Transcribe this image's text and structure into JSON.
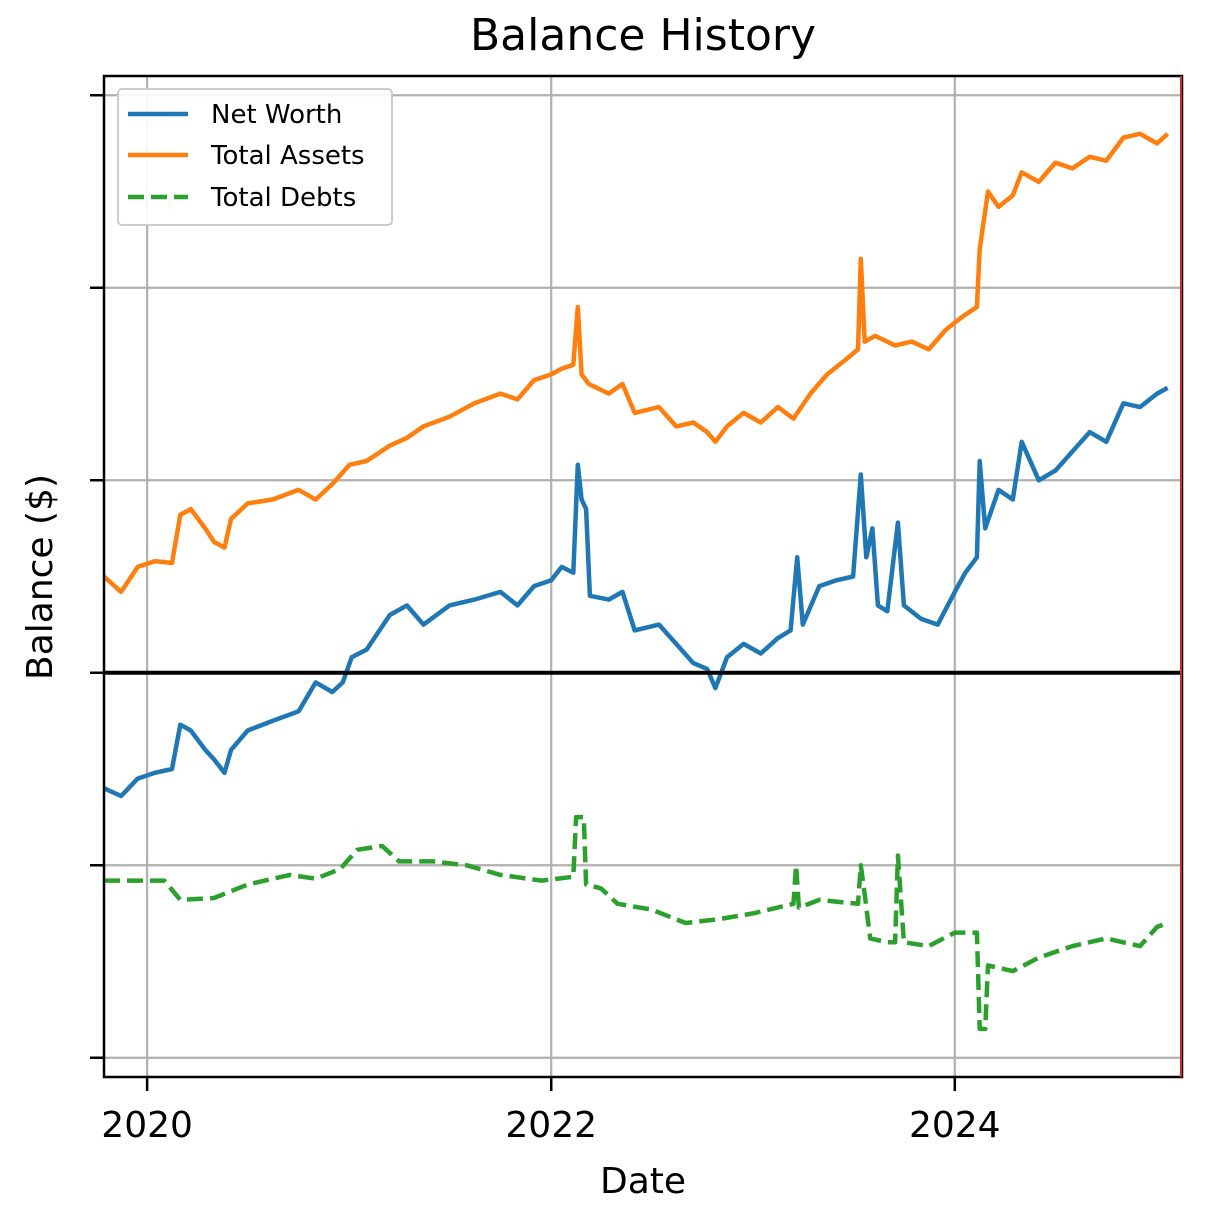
{
  "chart_data": {
    "type": "line",
    "title": "Balance History",
    "xlabel": "Date",
    "ylabel": "Balance ($)",
    "y_unit": "relative (y tick labels not shown)",
    "xlim": [
      "2019-10-15",
      "2025-02-15"
    ],
    "ylim": [
      -2.1,
      3.1
    ],
    "ytick_labels_visible": false,
    "yticks": [
      -2,
      -1,
      0,
      1,
      2,
      3
    ],
    "xticks": [
      {
        "date": "2020-01-01",
        "label": "2020"
      },
      {
        "date": "2022-01-01",
        "label": "2022"
      },
      {
        "date": "2024-01-01",
        "label": "2024"
      }
    ],
    "zero_line": true,
    "grid": true,
    "legend": "top-left",
    "series": [
      {
        "name": "Net Worth",
        "color": "#1f77b4",
        "style": "solid",
        "points": [
          [
            "2019-10-15",
            -0.6
          ],
          [
            "2019-11-15",
            -0.64
          ],
          [
            "2019-12-15",
            -0.55
          ],
          [
            "2020-01-15",
            -0.52
          ],
          [
            "2020-02-15",
            -0.5
          ],
          [
            "2020-03-01",
            -0.27
          ],
          [
            "2020-03-20",
            -0.3
          ],
          [
            "2020-04-15",
            -0.4
          ],
          [
            "2020-05-01",
            -0.45
          ],
          [
            "2020-05-20",
            -0.52
          ],
          [
            "2020-06-01",
            -0.4
          ],
          [
            "2020-07-01",
            -0.3
          ],
          [
            "2020-08-15",
            -0.25
          ],
          [
            "2020-10-01",
            -0.2
          ],
          [
            "2020-11-01",
            -0.05
          ],
          [
            "2020-12-01",
            -0.1
          ],
          [
            "2020-12-20",
            -0.05
          ],
          [
            "2021-01-05",
            0.08
          ],
          [
            "2021-02-01",
            0.12
          ],
          [
            "2021-03-15",
            0.3
          ],
          [
            "2021-04-15",
            0.35
          ],
          [
            "2021-05-15",
            0.25
          ],
          [
            "2021-07-01",
            0.35
          ],
          [
            "2021-08-15",
            0.38
          ],
          [
            "2021-10-01",
            0.42
          ],
          [
            "2021-11-01",
            0.35
          ],
          [
            "2021-12-01",
            0.45
          ],
          [
            "2022-01-01",
            0.48
          ],
          [
            "2022-01-20",
            0.55
          ],
          [
            "2022-02-10",
            0.52
          ],
          [
            "2022-02-18",
            1.08
          ],
          [
            "2022-02-25",
            0.9
          ],
          [
            "2022-03-05",
            0.85
          ],
          [
            "2022-03-12",
            0.4
          ],
          [
            "2022-04-15",
            0.38
          ],
          [
            "2022-05-10",
            0.42
          ],
          [
            "2022-06-01",
            0.22
          ],
          [
            "2022-07-15",
            0.25
          ],
          [
            "2022-08-15",
            0.15
          ],
          [
            "2022-09-15",
            0.05
          ],
          [
            "2022-10-10",
            0.02
          ],
          [
            "2022-10-25",
            -0.08
          ],
          [
            "2022-11-15",
            0.08
          ],
          [
            "2022-12-15",
            0.15
          ],
          [
            "2023-01-15",
            0.1
          ],
          [
            "2023-02-15",
            0.18
          ],
          [
            "2023-03-10",
            0.22
          ],
          [
            "2023-03-22",
            0.6
          ],
          [
            "2023-04-01",
            0.25
          ],
          [
            "2023-05-01",
            0.45
          ],
          [
            "2023-06-01",
            0.48
          ],
          [
            "2023-07-01",
            0.5
          ],
          [
            "2023-07-15",
            1.03
          ],
          [
            "2023-07-25",
            0.6
          ],
          [
            "2023-08-05",
            0.75
          ],
          [
            "2023-08-15",
            0.35
          ],
          [
            "2023-09-01",
            0.32
          ],
          [
            "2023-09-20",
            0.78
          ],
          [
            "2023-10-01",
            0.35
          ],
          [
            "2023-11-01",
            0.28
          ],
          [
            "2023-12-01",
            0.25
          ],
          [
            "2024-01-01",
            0.42
          ],
          [
            "2024-01-20",
            0.52
          ],
          [
            "2024-02-10",
            0.6
          ],
          [
            "2024-02-15",
            1.1
          ],
          [
            "2024-02-25",
            0.75
          ],
          [
            "2024-03-20",
            0.95
          ],
          [
            "2024-04-15",
            0.9
          ],
          [
            "2024-05-01",
            1.2
          ],
          [
            "2024-06-01",
            1.0
          ],
          [
            "2024-07-01",
            1.05
          ],
          [
            "2024-08-01",
            1.15
          ],
          [
            "2024-09-01",
            1.25
          ],
          [
            "2024-10-01",
            1.2
          ],
          [
            "2024-11-01",
            1.4
          ],
          [
            "2024-12-01",
            1.38
          ],
          [
            "2025-01-01",
            1.45
          ],
          [
            "2025-01-20",
            1.48
          ]
        ]
      },
      {
        "name": "Total Assets",
        "color": "#ff7f0e",
        "style": "solid",
        "points": [
          [
            "2019-10-15",
            0.5
          ],
          [
            "2019-11-15",
            0.42
          ],
          [
            "2019-12-15",
            0.55
          ],
          [
            "2020-01-15",
            0.58
          ],
          [
            "2020-02-15",
            0.57
          ],
          [
            "2020-03-01",
            0.82
          ],
          [
            "2020-03-20",
            0.85
          ],
          [
            "2020-04-15",
            0.75
          ],
          [
            "2020-05-01",
            0.68
          ],
          [
            "2020-05-20",
            0.65
          ],
          [
            "2020-06-01",
            0.8
          ],
          [
            "2020-07-01",
            0.88
          ],
          [
            "2020-08-15",
            0.9
          ],
          [
            "2020-10-01",
            0.95
          ],
          [
            "2020-11-01",
            0.9
          ],
          [
            "2020-12-01",
            0.98
          ],
          [
            "2021-01-01",
            1.08
          ],
          [
            "2021-02-01",
            1.1
          ],
          [
            "2021-03-15",
            1.18
          ],
          [
            "2021-04-15",
            1.22
          ],
          [
            "2021-05-15",
            1.28
          ],
          [
            "2021-07-01",
            1.33
          ],
          [
            "2021-08-15",
            1.4
          ],
          [
            "2021-10-01",
            1.45
          ],
          [
            "2021-11-01",
            1.42
          ],
          [
            "2021-12-01",
            1.52
          ],
          [
            "2022-01-01",
            1.55
          ],
          [
            "2022-01-20",
            1.58
          ],
          [
            "2022-02-10",
            1.6
          ],
          [
            "2022-02-18",
            1.9
          ],
          [
            "2022-02-25",
            1.55
          ],
          [
            "2022-03-10",
            1.5
          ],
          [
            "2022-04-15",
            1.45
          ],
          [
            "2022-05-10",
            1.5
          ],
          [
            "2022-06-01",
            1.35
          ],
          [
            "2022-07-15",
            1.38
          ],
          [
            "2022-08-15",
            1.28
          ],
          [
            "2022-09-15",
            1.3
          ],
          [
            "2022-10-10",
            1.25
          ],
          [
            "2022-10-25",
            1.2
          ],
          [
            "2022-11-15",
            1.28
          ],
          [
            "2022-12-15",
            1.35
          ],
          [
            "2023-01-15",
            1.3
          ],
          [
            "2023-02-15",
            1.38
          ],
          [
            "2023-03-15",
            1.32
          ],
          [
            "2023-04-15",
            1.45
          ],
          [
            "2023-05-15",
            1.55
          ],
          [
            "2023-06-15",
            1.62
          ],
          [
            "2023-07-10",
            1.68
          ],
          [
            "2023-07-15",
            2.15
          ],
          [
            "2023-07-22",
            1.72
          ],
          [
            "2023-08-10",
            1.75
          ],
          [
            "2023-09-15",
            1.7
          ],
          [
            "2023-10-15",
            1.72
          ],
          [
            "2023-11-15",
            1.68
          ],
          [
            "2023-12-15",
            1.78
          ],
          [
            "2024-01-15",
            1.85
          ],
          [
            "2024-02-10",
            1.9
          ],
          [
            "2024-02-15",
            2.2
          ],
          [
            "2024-03-01",
            2.5
          ],
          [
            "2024-03-20",
            2.42
          ],
          [
            "2024-04-15",
            2.48
          ],
          [
            "2024-05-01",
            2.6
          ],
          [
            "2024-06-01",
            2.55
          ],
          [
            "2024-07-01",
            2.65
          ],
          [
            "2024-08-01",
            2.62
          ],
          [
            "2024-09-01",
            2.68
          ],
          [
            "2024-10-01",
            2.66
          ],
          [
            "2024-11-01",
            2.78
          ],
          [
            "2024-12-01",
            2.8
          ],
          [
            "2025-01-01",
            2.75
          ],
          [
            "2025-01-20",
            2.8
          ]
        ]
      },
      {
        "name": "Total Debts",
        "color": "#2ca02c",
        "style": "dashed",
        "points": [
          [
            "2019-10-15",
            -1.08
          ],
          [
            "2020-01-01",
            -1.08
          ],
          [
            "2020-02-01",
            -1.08
          ],
          [
            "2020-03-01",
            -1.18
          ],
          [
            "2020-05-01",
            -1.17
          ],
          [
            "2020-07-01",
            -1.1
          ],
          [
            "2020-09-15",
            -1.05
          ],
          [
            "2020-11-01",
            -1.07
          ],
          [
            "2020-12-15",
            -1.02
          ],
          [
            "2021-01-15",
            -0.92
          ],
          [
            "2021-03-01",
            -0.9
          ],
          [
            "2021-04-01",
            -0.98
          ],
          [
            "2021-06-01",
            -0.98
          ],
          [
            "2021-08-01",
            -1.0
          ],
          [
            "2021-10-01",
            -1.05
          ],
          [
            "2021-12-15",
            -1.08
          ],
          [
            "2022-02-10",
            -1.06
          ],
          [
            "2022-02-15",
            -0.75
          ],
          [
            "2022-03-01",
            -0.75
          ],
          [
            "2022-03-05",
            -1.1
          ],
          [
            "2022-04-01",
            -1.12
          ],
          [
            "2022-05-01",
            -1.2
          ],
          [
            "2022-07-01",
            -1.23
          ],
          [
            "2022-09-01",
            -1.3
          ],
          [
            "2022-11-01",
            -1.28
          ],
          [
            "2023-01-01",
            -1.25
          ],
          [
            "2023-03-15",
            -1.2
          ],
          [
            "2023-03-20",
            -1.0
          ],
          [
            "2023-03-25",
            -1.22
          ],
          [
            "2023-05-01",
            -1.18
          ],
          [
            "2023-07-10",
            -1.2
          ],
          [
            "2023-07-15",
            -1.0
          ],
          [
            "2023-07-22",
            -1.15
          ],
          [
            "2023-08-01",
            -1.38
          ],
          [
            "2023-09-01",
            -1.4
          ],
          [
            "2023-09-15",
            -1.4
          ],
          [
            "2023-09-20",
            -0.95
          ],
          [
            "2023-10-01",
            -1.4
          ],
          [
            "2023-11-15",
            -1.42
          ],
          [
            "2024-01-01",
            -1.35
          ],
          [
            "2024-02-10",
            -1.35
          ],
          [
            "2024-02-15",
            -1.85
          ],
          [
            "2024-02-25",
            -1.85
          ],
          [
            "2024-03-01",
            -1.52
          ],
          [
            "2024-04-15",
            -1.55
          ],
          [
            "2024-06-01",
            -1.48
          ],
          [
            "2024-08-01",
            -1.42
          ],
          [
            "2024-10-01",
            -1.38
          ],
          [
            "2024-12-01",
            -1.42
          ],
          [
            "2025-01-01",
            -1.32
          ],
          [
            "2025-01-20",
            -1.3
          ]
        ]
      }
    ]
  }
}
